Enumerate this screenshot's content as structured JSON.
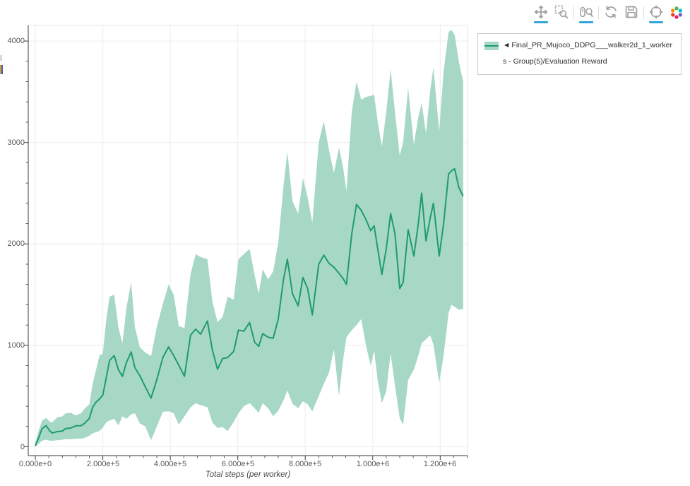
{
  "toolbar": {
    "tools": [
      {
        "id": "pan",
        "active": true
      },
      {
        "id": "box-zoom",
        "active": false
      },
      {
        "id": "wheel-zoom",
        "active": true
      },
      {
        "id": "reset",
        "active": false
      },
      {
        "id": "save",
        "active": false
      },
      {
        "id": "hover",
        "active": true
      },
      {
        "id": "logo",
        "active": false
      }
    ]
  },
  "legend": {
    "marker": "◄",
    "label": "Final_PR_Mujoco_DDPG___walker2d_1_workers - Group(5)/Evaluation Reward"
  },
  "colors": {
    "line": "#1f9b70",
    "band": "#a7d8c5",
    "grid": "#ececec",
    "outline": "#e5e5e5",
    "axis": "#3b3b3b",
    "tick_label": "#565656",
    "active_underline": "#35a4dc",
    "legend_border": "#cccccc",
    "icon": "#9e9e9e"
  },
  "chart_data": {
    "type": "line",
    "title": "",
    "xlabel": "Total steps (per worker)",
    "ylabel": "",
    "legend_position": "outside-top-right",
    "grid": true,
    "xlim": [
      -21000,
      1281000
    ],
    "ylim": [
      -87,
      4154
    ],
    "x_ticks": {
      "values": [
        0,
        200000,
        400000,
        600000,
        800000,
        1000000,
        1200000
      ],
      "labels": [
        "0.000e+0",
        "2.000e+5",
        "4.000e+5",
        "6.000e+5",
        "8.000e+5",
        "1.000e+6",
        "1.200e+6"
      ]
    },
    "y_ticks": {
      "values": [
        0,
        1000,
        2000,
        3000,
        4000
      ],
      "labels": [
        "0",
        "1000",
        "2000",
        "3000",
        "4000"
      ]
    },
    "x_minor_step": 40000,
    "y_minor_step": 200,
    "series": [
      {
        "name": "Final_PR_Mujoco_DDPG___walker2d_1_workers - Group(5)/Evaluation Reward",
        "color": "#1f9b70",
        "band_color": "#a7d8c5",
        "x": [
          0,
          10000,
          20000,
          32000,
          42000,
          50000,
          65000,
          80000,
          90000,
          105000,
          120000,
          135000,
          147000,
          160000,
          170000,
          180000,
          190000,
          200000,
          210000,
          220000,
          234000,
          246000,
          258000,
          270000,
          284000,
          295000,
          310000,
          326000,
          343000,
          360000,
          378000,
          395000,
          410000,
          425000,
          442000,
          460000,
          475000,
          490000,
          510000,
          525000,
          540000,
          555000,
          570000,
          588000,
          602000,
          618000,
          635000,
          650000,
          662000,
          674000,
          690000,
          705000,
          720000,
          735000,
          747000,
          762000,
          779000,
          793000,
          807000,
          821000,
          840000,
          855000,
          870000,
          885000,
          900000,
          912000,
          922000,
          938000,
          952000,
          966000,
          980000,
          994000,
          1004000,
          1015000,
          1027000,
          1040000,
          1053000,
          1066000,
          1080000,
          1090000,
          1105000,
          1122000,
          1135000,
          1145000,
          1158000,
          1170000,
          1180000,
          1197000,
          1210000,
          1225000,
          1233000,
          1243000,
          1255000,
          1268000
        ],
        "mean": [
          10,
          90,
          180,
          210,
          160,
          135,
          150,
          155,
          180,
          185,
          207,
          207,
          235,
          280,
          390,
          440,
          470,
          510,
          680,
          850,
          900,
          760,
          695,
          830,
          935,
          780,
          700,
          590,
          480,
          660,
          880,
          985,
          900,
          805,
          695,
          1100,
          1160,
          1110,
          1240,
          950,
          765,
          870,
          880,
          940,
          1150,
          1140,
          1225,
          1030,
          990,
          1115,
          1080,
          1070,
          1260,
          1640,
          1850,
          1510,
          1390,
          1670,
          1560,
          1300,
          1800,
          1890,
          1810,
          1770,
          1710,
          1660,
          1600,
          2100,
          2390,
          2330,
          2240,
          2130,
          2180,
          1950,
          1700,
          1950,
          2300,
          2100,
          1560,
          1620,
          2140,
          1880,
          2200,
          2500,
          2030,
          2250,
          2400,
          1880,
          2200,
          2690,
          2720,
          2740,
          2560,
          2470
        ],
        "lower": [
          0,
          30,
          60,
          70,
          60,
          60,
          65,
          70,
          75,
          75,
          80,
          80,
          88,
          110,
          130,
          145,
          155,
          190,
          240,
          260,
          275,
          210,
          300,
          275,
          320,
          330,
          230,
          200,
          65,
          200,
          345,
          350,
          330,
          220,
          300,
          390,
          430,
          410,
          390,
          240,
          185,
          195,
          155,
          245,
          330,
          400,
          430,
          380,
          335,
          430,
          380,
          300,
          355,
          455,
          555,
          425,
          380,
          450,
          420,
          350,
          500,
          620,
          730,
          960,
          500,
          850,
          1080,
          1150,
          1200,
          1260,
          1000,
          800,
          950,
          650,
          430,
          550,
          920,
          600,
          280,
          215,
          660,
          760,
          900,
          1020,
          1060,
          1100,
          1010,
          630,
          900,
          1320,
          1400,
          1380,
          1350,
          1360
        ],
        "upper": [
          40,
          160,
          260,
          285,
          250,
          240,
          290,
          300,
          330,
          335,
          310,
          330,
          380,
          420,
          620,
          760,
          900,
          920,
          1250,
          1480,
          1500,
          1180,
          1020,
          1370,
          1620,
          1180,
          980,
          930,
          895,
          1180,
          1410,
          1600,
          1500,
          1190,
          1170,
          1700,
          1900,
          1870,
          1850,
          1430,
          1230,
          1280,
          1480,
          1450,
          1850,
          1900,
          1950,
          1690,
          1510,
          1750,
          1650,
          1730,
          2010,
          2560,
          2910,
          2420,
          2300,
          2650,
          2460,
          2210,
          3000,
          3210,
          2930,
          2700,
          2950,
          2760,
          2520,
          3300,
          3600,
          3420,
          3450,
          3460,
          3470,
          3200,
          2960,
          3300,
          3720,
          3300,
          2870,
          3000,
          3540,
          2980,
          3250,
          3390,
          3090,
          3500,
          3740,
          3110,
          3700,
          4090,
          4110,
          4060,
          3800,
          3600
        ]
      }
    ]
  }
}
